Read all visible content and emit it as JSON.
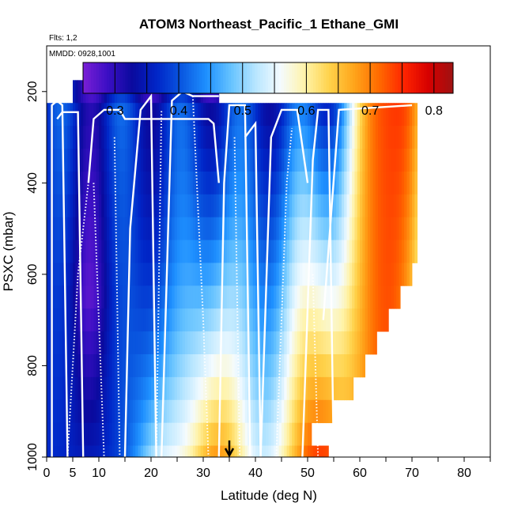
{
  "chart_data": {
    "type": "heatmap",
    "title": "ATOM3 Northeast_Pacific_1 Ethane_GMI",
    "subtitle_flights": "Flts: 1,2",
    "subtitle_dates": "MMDD: 0928,1001",
    "xlabel": "Latitude (deg N)",
    "ylabel": "PSXC (mbar)",
    "xlim": [
      0,
      85
    ],
    "ylim": [
      1000,
      100
    ],
    "x_ticks": [
      "0",
      "5",
      "10",
      "20",
      "30",
      "40",
      "50",
      "60",
      "70",
      "80"
    ],
    "x_tick_values": [
      0,
      5,
      10,
      20,
      30,
      40,
      50,
      60,
      70,
      80
    ],
    "y_ticks": [
      "200",
      "400",
      "600",
      "800",
      "1000"
    ],
    "y_tick_values": [
      200,
      400,
      600,
      800,
      1000
    ],
    "colorbar": {
      "min": 0.25,
      "max": 0.83,
      "ticks": [
        "0.3",
        "0.4",
        "0.5",
        "0.6",
        "0.7",
        "0.8"
      ],
      "tick_values": [
        0.3,
        0.4,
        0.5,
        0.6,
        0.7,
        0.8
      ],
      "colors": [
        "#7a1fd6",
        "#3b0fc4",
        "#0a0a9e",
        "#0026c8",
        "#0a58e0",
        "#1e90ff",
        "#66c3ff",
        "#b8e6ff",
        "#f4fbff",
        "#fff3a8",
        "#ffd24a",
        "#ffa41a",
        "#ff6a00",
        "#ff2400",
        "#d60000",
        "#9e1212"
      ]
    },
    "grid": false,
    "pressure_levels": [
      200,
      250,
      300,
      350,
      400,
      450,
      500,
      550,
      600,
      650,
      700,
      750,
      800,
      850,
      900,
      950,
      1000
    ],
    "data_lat_extent": [
      0,
      71
    ],
    "marker": {
      "latitude": 35,
      "label": "arrow"
    }
  }
}
